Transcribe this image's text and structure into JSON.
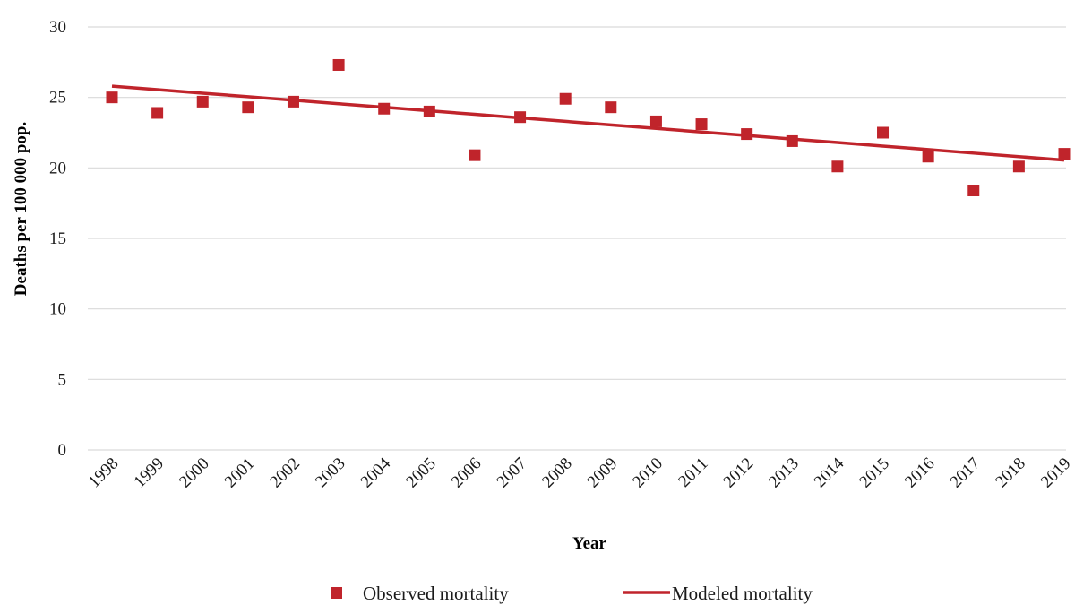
{
  "chart_data": {
    "type": "scatter",
    "title": "",
    "xlabel": "Year",
    "ylabel": "Deaths per 100 000 pop.",
    "ylim": [
      0,
      30
    ],
    "yticks": [
      0,
      5,
      10,
      15,
      20,
      25,
      30
    ],
    "grid": "horizontal",
    "legend_position": "bottom",
    "categories": [
      "1998",
      "1999",
      "2000",
      "2001",
      "2002",
      "2003",
      "2004",
      "2005",
      "2006",
      "2007",
      "2008",
      "2009",
      "2010",
      "2011",
      "2012",
      "2013",
      "2014",
      "2015",
      "2016",
      "2017",
      "2018",
      "2019"
    ],
    "series": [
      {
        "name": "Observed mortality",
        "kind": "markers",
        "marker": "square",
        "color": "#c0242b",
        "values": [
          25.0,
          23.9,
          24.7,
          24.3,
          24.7,
          27.3,
          24.2,
          24.0,
          20.9,
          23.6,
          24.9,
          24.3,
          23.3,
          23.1,
          22.4,
          21.9,
          20.1,
          22.5,
          20.8,
          18.4,
          20.1,
          21.0
        ]
      },
      {
        "name": "Modeled mortality",
        "kind": "line",
        "color": "#c0242b",
        "values": [
          25.8,
          25.55,
          25.3,
          25.05,
          24.8,
          24.55,
          24.3,
          24.05,
          23.8,
          23.55,
          23.3,
          23.05,
          22.8,
          22.55,
          22.3,
          22.05,
          21.8,
          21.55,
          21.3,
          21.05,
          20.8,
          20.55
        ]
      }
    ]
  }
}
